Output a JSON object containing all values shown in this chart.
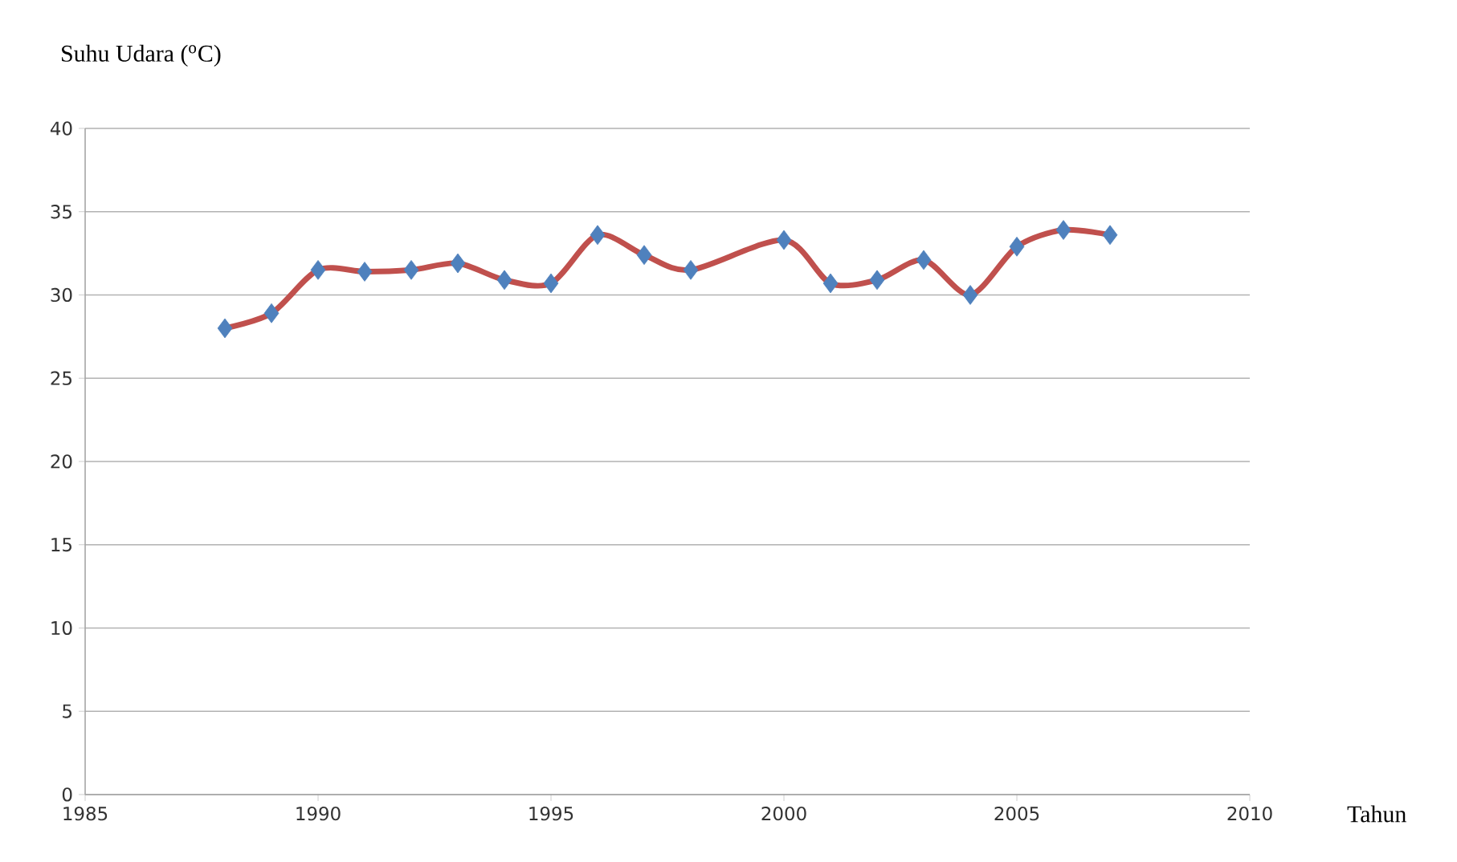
{
  "chart_data": {
    "type": "line",
    "ylabel": "Suhu Udara ($^{o}$C)",
    "xlabel": "Tahun",
    "xlim": [
      1985,
      2010
    ],
    "xticks": [
      1985,
      1990,
      1995,
      2000,
      2005,
      2010
    ],
    "ylim": [
      0,
      40
    ],
    "yticks": [
      0,
      5,
      10,
      15,
      20,
      25,
      30,
      35,
      40
    ],
    "grid": "y",
    "marker": "diamond",
    "line_style": "solid",
    "series": [
      {
        "color": "#c0504d",
        "colors": [
          "#4f81bd",
          "#4f81bd",
          "#4f81bd",
          "#4f81bd",
          "#4f81bd",
          "#4f81bd",
          "#4f81bd",
          "#4f81bd",
          "#4f81bd",
          "#4f81bd",
          "#4f81bd",
          "#4f81bd",
          "#4f81bd",
          "#4f81bd",
          "#4f81bd",
          "#4f81bd",
          "#4f81bd",
          "#4f81bd",
          "#4f81bd"
        ],
        "x": [
          1988,
          1989,
          1990,
          1991,
          1992,
          1993,
          1994,
          1995,
          1996,
          1997,
          1998,
          2000,
          2001,
          2002,
          2003,
          2004,
          2005,
          2006,
          2007
        ],
        "values": [
          28.0,
          28.9,
          31.5,
          31.4,
          31.5,
          31.9,
          30.9,
          30.7,
          33.6,
          32.4,
          31.5,
          33.3,
          30.7,
          30.9,
          32.1,
          30.0,
          32.9,
          33.9,
          33.6
        ]
      }
    ]
  }
}
